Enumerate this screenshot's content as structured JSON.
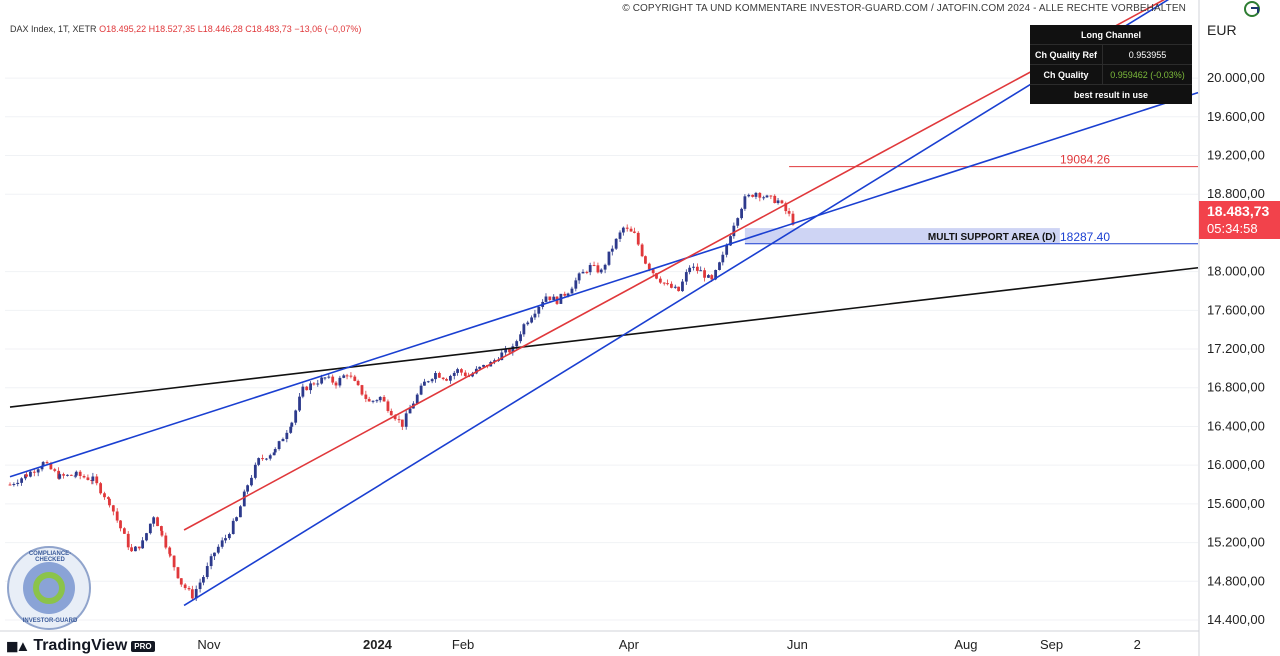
{
  "header": {
    "copyright": "© COPYRIGHT TA UND KOMMENTARE INVESTOR-GUARD.COM / JATOFIN.COM 2024 - ALLE RECHTE VORBEHALTEN"
  },
  "symbol": {
    "name": "DAX Index, 1T, XETR",
    "open": "O18.495,22",
    "high": "H18.527,35",
    "low": "L18.446,28",
    "close": "C18.483,73",
    "change": "−13,06 (−0,07%)"
  },
  "currency": "EUR",
  "price_tag": {
    "price": "18.483,73",
    "timer": "05:34:58",
    "color": "#f2424b"
  },
  "quality_table": {
    "title": "Long Channel",
    "rows": [
      {
        "label": "Ch Quality Ref",
        "value": "0.953955"
      },
      {
        "label": "Ch Quality",
        "value": "0.959462 (-0.03%)"
      }
    ],
    "footer": "best result in use"
  },
  "branding": {
    "platform": "TradingView",
    "tier": "PRO",
    "badge_top": "COMPLIANCE-CHECKED",
    "badge_bottom": "INVESTOR-GUARD"
  },
  "chart_data": {
    "type": "candlestick",
    "y_range": [
      14400,
      20600
    ],
    "x_range_days": [
      0,
      430
    ],
    "y_ticks": [
      {
        "value": 20000,
        "label": "20.000,00"
      },
      {
        "value": 19600,
        "label": "19.600,00"
      },
      {
        "value": 19200,
        "label": "19.200,00"
      },
      {
        "value": 18800,
        "label": "18.800,00"
      },
      {
        "value": 18000,
        "label": "18.000,00"
      },
      {
        "value": 17600,
        "label": "17.600,00"
      },
      {
        "value": 17200,
        "label": "17.200,00"
      },
      {
        "value": 16800,
        "label": "16.800,00"
      },
      {
        "value": 16400,
        "label": "16.400,00"
      },
      {
        "value": 16000,
        "label": "16.000,00"
      },
      {
        "value": 15600,
        "label": "15.600,00"
      },
      {
        "value": 15200,
        "label": "15.200,00"
      },
      {
        "value": 14800,
        "label": "14.800,00"
      },
      {
        "value": 14400,
        "label": "14.400,00"
      }
    ],
    "x_ticks": [
      {
        "day": 72,
        "label": "Nov",
        "bold": false
      },
      {
        "day": 133,
        "label": "2024",
        "bold": true
      },
      {
        "day": 164,
        "label": "Feb",
        "bold": false
      },
      {
        "day": 224,
        "label": "Apr",
        "bold": false
      },
      {
        "day": 285,
        "label": "Jun",
        "bold": false
      },
      {
        "day": 346,
        "label": "Aug",
        "bold": false
      },
      {
        "day": 377,
        "label": "Sep",
        "bold": false
      },
      {
        "day": 408,
        "label": "2",
        "bold": false
      }
    ],
    "path": [
      [
        0,
        15800
      ],
      [
        6,
        15900
      ],
      [
        12,
        16020
      ],
      [
        18,
        15880
      ],
      [
        24,
        15900
      ],
      [
        30,
        15850
      ],
      [
        36,
        15620
      ],
      [
        40,
        15350
      ],
      [
        44,
        15100
      ],
      [
        48,
        15200
      ],
      [
        52,
        15480
      ],
      [
        55,
        15300
      ],
      [
        58,
        15050
      ],
      [
        62,
        14780
      ],
      [
        66,
        14650
      ],
      [
        70,
        14850
      ],
      [
        74,
        15100
      ],
      [
        78,
        15250
      ],
      [
        82,
        15450
      ],
      [
        86,
        15800
      ],
      [
        90,
        16050
      ],
      [
        96,
        16150
      ],
      [
        102,
        16450
      ],
      [
        106,
        16780
      ],
      [
        110,
        16850
      ],
      [
        114,
        16900
      ],
      [
        118,
        16850
      ],
      [
        122,
        16950
      ],
      [
        126,
        16800
      ],
      [
        130,
        16650
      ],
      [
        134,
        16700
      ],
      [
        138,
        16550
      ],
      [
        142,
        16420
      ],
      [
        146,
        16650
      ],
      [
        150,
        16850
      ],
      [
        154,
        16950
      ],
      [
        158,
        16900
      ],
      [
        162,
        16980
      ],
      [
        166,
        16920
      ],
      [
        170,
        17000
      ],
      [
        174,
        17050
      ],
      [
        178,
        17150
      ],
      [
        182,
        17200
      ],
      [
        186,
        17450
      ],
      [
        190,
        17600
      ],
      [
        194,
        17750
      ],
      [
        198,
        17700
      ],
      [
        202,
        17800
      ],
      [
        206,
        17950
      ],
      [
        210,
        18050
      ],
      [
        214,
        18000
      ],
      [
        218,
        18250
      ],
      [
        222,
        18450
      ],
      [
        226,
        18380
      ],
      [
        230,
        18100
      ],
      [
        234,
        17950
      ],
      [
        238,
        17850
      ],
      [
        242,
        17800
      ],
      [
        246,
        18050
      ],
      [
        250,
        18000
      ],
      [
        254,
        17900
      ],
      [
        258,
        18150
      ],
      [
        262,
        18500
      ],
      [
        266,
        18750
      ],
      [
        270,
        18820
      ],
      [
        274,
        18760
      ],
      [
        278,
        18730
      ],
      [
        282,
        18580
      ],
      [
        284,
        18484
      ]
    ],
    "multi_support_area": {
      "label": "MULTI SUPPORT AREA (D)",
      "y_top": 18450,
      "y_bottom": 18287,
      "x_start_day": 266,
      "x_end_day": 380
    },
    "levels": [
      {
        "label": "19084.26",
        "value": 19084.26,
        "color": "#e0383b",
        "x_start_day": 282
      },
      {
        "label": "18287.40",
        "value": 18287.4,
        "color": "#1a3fd1",
        "x_start_day": 266
      }
    ],
    "trendlines": [
      {
        "name": "long-term-support-black",
        "color": "#111111",
        "p1": [
          0,
          16600
        ],
        "p2": [
          430,
          18040
        ]
      },
      {
        "name": "upper-blue-channel",
        "color": "#1a3fd1",
        "p1": [
          0,
          15880
        ],
        "p2": [
          430,
          19850
        ]
      },
      {
        "name": "steep-blue-support",
        "color": "#1a3fd1",
        "p1": [
          63,
          14550
        ],
        "p2": [
          430,
          21000
        ]
      },
      {
        "name": "red-regression-line",
        "color": "#e0383b",
        "p1": [
          63,
          15330
        ],
        "p2": [
          430,
          21000
        ]
      }
    ],
    "colors": {
      "up": "#2d3a8c",
      "down": "#e0383b",
      "grid": "#f0f2f5",
      "support_area": "#c5cdf2"
    }
  }
}
